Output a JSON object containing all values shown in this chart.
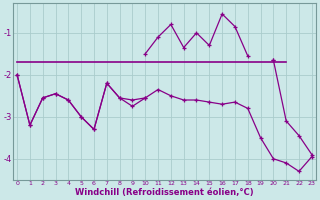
{
  "xlabel": "Windchill (Refroidissement éolien,°C)",
  "background_color": "#cce8e8",
  "grid_color": "#aacccc",
  "line_color": "#880088",
  "x_hours": [
    0,
    1,
    2,
    3,
    4,
    5,
    6,
    7,
    8,
    9,
    10,
    11,
    12,
    13,
    14,
    15,
    16,
    17,
    18,
    19,
    20,
    21,
    22,
    23
  ],
  "line_flat": [
    -1.7,
    -1.7,
    -1.7,
    -1.7,
    -1.7,
    -1.7,
    -1.7,
    -1.7,
    -1.7,
    -1.7,
    -1.7,
    -1.7,
    -1.7,
    -1.7,
    -1.7,
    -1.7,
    -1.7,
    -1.7,
    -1.7,
    -1.7,
    -1.7,
    -1.7,
    null,
    null
  ],
  "line_spike": [
    null,
    null,
    null,
    null,
    null,
    null,
    null,
    null,
    null,
    null,
    -1.5,
    -1.1,
    -0.8,
    -1.35,
    -1.0,
    -1.3,
    -0.55,
    -0.85,
    -1.55,
    null,
    -1.65,
    null,
    null,
    null
  ],
  "line_zigzag": [
    -2.0,
    -3.2,
    -2.55,
    -2.45,
    -2.6,
    -3.0,
    -3.3,
    -2.2,
    -2.55,
    -2.6,
    -2.55,
    null,
    null,
    null,
    null,
    null,
    null,
    null,
    null,
    null,
    null,
    null,
    null,
    null
  ],
  "line_down1": [
    null,
    null,
    null,
    null,
    null,
    null,
    null,
    null,
    null,
    null,
    null,
    null,
    null,
    null,
    null,
    null,
    null,
    null,
    null,
    null,
    -1.65,
    -3.1,
    -3.45,
    -3.9
  ],
  "line_trend": [
    -2.0,
    -3.2,
    -2.55,
    -2.45,
    -2.6,
    -3.0,
    -3.3,
    -2.2,
    -2.55,
    -2.75,
    -2.55,
    -2.35,
    -2.5,
    -2.6,
    -2.6,
    -2.65,
    -2.7,
    -2.65,
    -2.8,
    -3.5,
    -4.0,
    -4.1,
    -4.3,
    -3.95
  ],
  "ylim": [
    -4.5,
    -0.3
  ],
  "xlim": [
    -0.3,
    23.3
  ],
  "yticks": [
    -4,
    -3,
    -2,
    -1
  ],
  "xticks": [
    0,
    1,
    2,
    3,
    4,
    5,
    6,
    7,
    8,
    9,
    10,
    11,
    12,
    13,
    14,
    15,
    16,
    17,
    18,
    19,
    20,
    21,
    22,
    23
  ]
}
